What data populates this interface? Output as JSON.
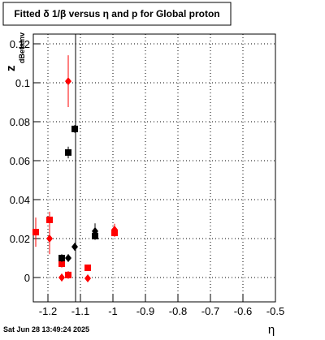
{
  "chart_data": {
    "type": "scatter",
    "title": "Fitted δ 1/β versus η and p for Global proton",
    "x_label": "η",
    "y_label": "z",
    "y_label_sub": "dBetaInv",
    "footer": "Sat Jun 28 13:49:24 2025",
    "xlim": [
      -1.245,
      -0.5
    ],
    "ylim": [
      -0.0125,
      0.125
    ],
    "xticks": [
      -1.2,
      -1.1,
      -1,
      -0.9,
      -0.8,
      -0.7,
      -0.6,
      -0.5
    ],
    "yticks": [
      0,
      0.02,
      0.04,
      0.06,
      0.08,
      0.1,
      0.12
    ],
    "grid": true,
    "vline": -1.115,
    "series": [
      {
        "color": "#ff0000",
        "marker": "square",
        "x": [
          -1.2375,
          -1.195,
          -1.1575,
          -1.1375,
          -1.0775,
          -0.995
        ],
        "values": [
          0.0233,
          0.0296,
          0.0071,
          0.0013,
          0.005,
          0.0229
        ],
        "errors": [
          0.0075,
          0.0042,
          0.002,
          0.002,
          0.001,
          0.002
        ]
      },
      {
        "color": "#ff0000",
        "marker": "diamond",
        "x": [
          -1.195,
          -1.1575,
          -1.1375,
          -1.0775,
          -0.995
        ],
        "values": [
          0.02,
          0,
          0.1008,
          -0.0004,
          0.0246
        ],
        "errors": [
          0.008,
          0.002,
          0.0133,
          0.001,
          0.003
        ]
      },
      {
        "color": "#000000",
        "marker": "square",
        "x": [
          -1.1575,
          -1.1375,
          -1.1175,
          -1.055
        ],
        "values": [
          0.01,
          0.0642,
          0.0763,
          0.0213
        ],
        "errors": [
          0.002,
          0.003,
          0.002,
          0.002
        ]
      },
      {
        "color": "#000000",
        "marker": "diamond",
        "x": [
          -1.1375,
          -1.1175,
          -1.055
        ],
        "values": [
          0.01,
          0.0158,
          0.0238
        ],
        "errors": [
          0.002,
          0.002,
          0.004
        ]
      }
    ]
  }
}
